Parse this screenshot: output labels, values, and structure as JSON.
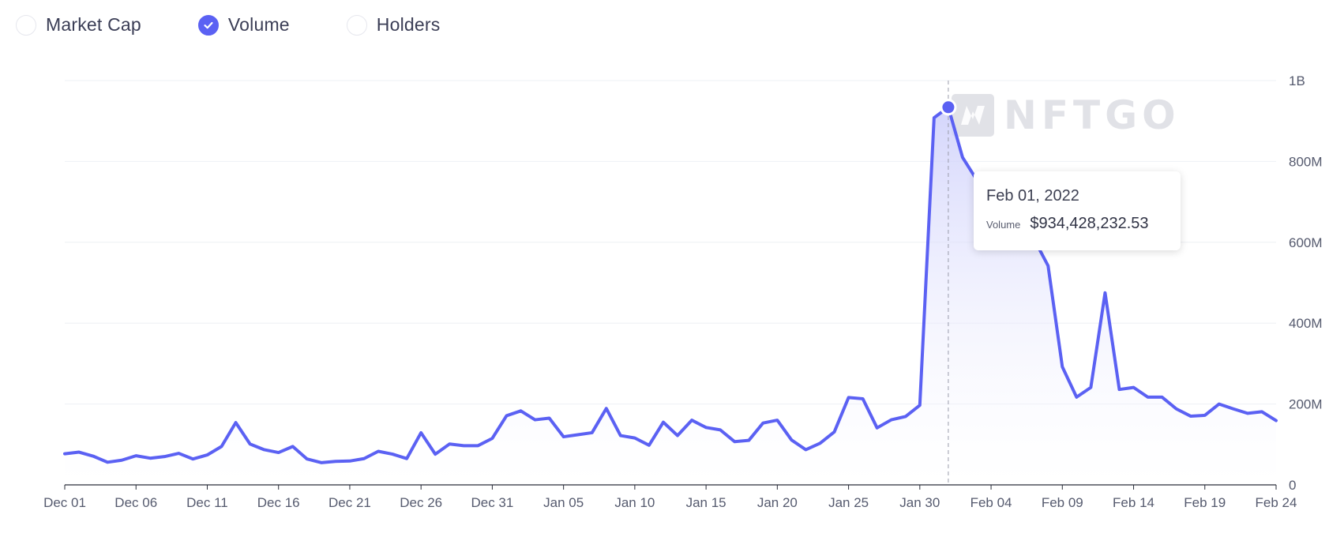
{
  "legend": {
    "items": [
      {
        "label": "Market Cap",
        "checked": false
      },
      {
        "label": "Volume",
        "checked": true
      },
      {
        "label": "Holders",
        "checked": false
      }
    ]
  },
  "watermark": {
    "text": "NFTGO"
  },
  "tooltip": {
    "date": "Feb 01, 2022",
    "series": "Volume",
    "value": "$934,428,232.53"
  },
  "colors": {
    "line": "#5b61f3",
    "area_top": "#c9cbfb",
    "grid": "#eef0f4",
    "axis": "#2a2d3a"
  },
  "chart_data": {
    "type": "area",
    "series_name": "Volume",
    "ylim": [
      0,
      1000000000
    ],
    "yticks": [
      0,
      200000000,
      400000000,
      600000000,
      800000000,
      1000000000
    ],
    "ytick_labels": [
      "0",
      "200M",
      "400M",
      "600M",
      "800M",
      "1B"
    ],
    "xtick_labels": [
      "Dec 01",
      "Dec 06",
      "Dec 11",
      "Dec 16",
      "Dec 21",
      "Dec 26",
      "Dec 31",
      "Jan 05",
      "Jan 10",
      "Jan 15",
      "Jan 20",
      "Jan 25",
      "Jan 30",
      "Feb 04",
      "Feb 09",
      "Feb 14",
      "Feb 19",
      "Feb 24"
    ],
    "xtick_step_days": 5,
    "start_date": "Dec 01, 2021",
    "highlight_index": 62,
    "values_millions": [
      77,
      81,
      71,
      56,
      61,
      72,
      66,
      70,
      78,
      64,
      74,
      95,
      154,
      101,
      87,
      80,
      95,
      64,
      55,
      58,
      59,
      65,
      83,
      76,
      65,
      129,
      76,
      101,
      97,
      97,
      115,
      171,
      183,
      161,
      165,
      119,
      124,
      129,
      189,
      122,
      116,
      98,
      155,
      122,
      160,
      142,
      136,
      107,
      110,
      153,
      160,
      111,
      87,
      103,
      131,
      216,
      213,
      141,
      161,
      169,
      197,
      908,
      934,
      810,
      754,
      710,
      680,
      650,
      609,
      542,
      292,
      217,
      241,
      475,
      236,
      241,
      217,
      217,
      188,
      170,
      172,
      200,
      188,
      177,
      181,
      159
    ]
  }
}
